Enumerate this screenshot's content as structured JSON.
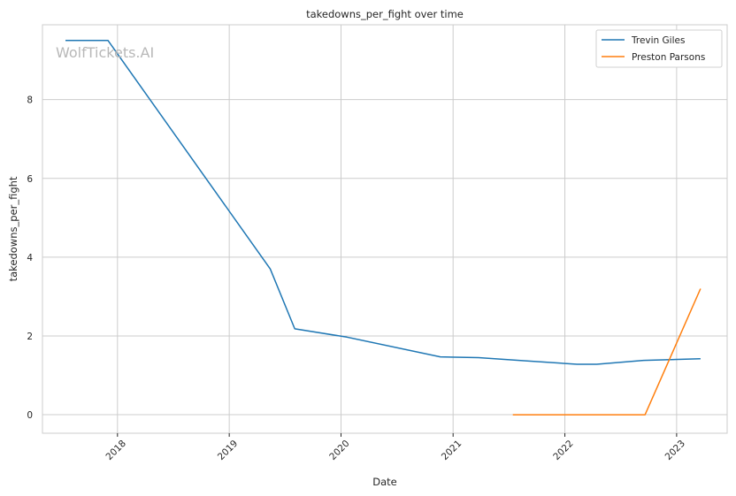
{
  "chart_data": {
    "type": "line",
    "title": "takedowns_per_fight over time",
    "xlabel": "Date",
    "ylabel": "takedowns_per_fight",
    "watermark": "WolfTickets.AI",
    "xlim": [
      "2017-05-01",
      "2023-06-15"
    ],
    "ylim": [
      -0.47,
      9.9
    ],
    "x_ticks": [
      {
        "value": "2018-01-01",
        "label": "2018"
      },
      {
        "value": "2019-01-01",
        "label": "2019"
      },
      {
        "value": "2020-01-01",
        "label": "2020"
      },
      {
        "value": "2021-01-01",
        "label": "2021"
      },
      {
        "value": "2022-01-01",
        "label": "2022"
      },
      {
        "value": "2023-01-01",
        "label": "2023"
      }
    ],
    "y_ticks": [
      {
        "value": 0,
        "label": "0"
      },
      {
        "value": 2,
        "label": "2"
      },
      {
        "value": 4,
        "label": "4"
      },
      {
        "value": 6,
        "label": "6"
      },
      {
        "value": 8,
        "label": "8"
      }
    ],
    "grid": true,
    "legend_position": "top-right",
    "series": [
      {
        "name": "Trevin Giles",
        "color": "#1f77b4",
        "points": [
          {
            "x": "2017-07-15",
            "y": 9.5
          },
          {
            "x": "2017-12-01",
            "y": 9.5
          },
          {
            "x": "2019-05-15",
            "y": 3.7
          },
          {
            "x": "2019-08-03",
            "y": 2.18
          },
          {
            "x": "2020-01-20",
            "y": 1.97
          },
          {
            "x": "2020-11-20",
            "y": 1.47
          },
          {
            "x": "2021-03-25",
            "y": 1.45
          },
          {
            "x": "2021-08-20",
            "y": 1.37
          },
          {
            "x": "2022-02-10",
            "y": 1.28
          },
          {
            "x": "2022-04-15",
            "y": 1.28
          },
          {
            "x": "2022-09-15",
            "y": 1.38
          },
          {
            "x": "2023-03-20",
            "y": 1.42
          }
        ]
      },
      {
        "name": "Preston Parsons",
        "color": "#ff7f0e",
        "points": [
          {
            "x": "2021-07-15",
            "y": 0.0
          },
          {
            "x": "2022-09-20",
            "y": 0.0
          },
          {
            "x": "2023-03-20",
            "y": 3.2
          }
        ]
      }
    ]
  }
}
